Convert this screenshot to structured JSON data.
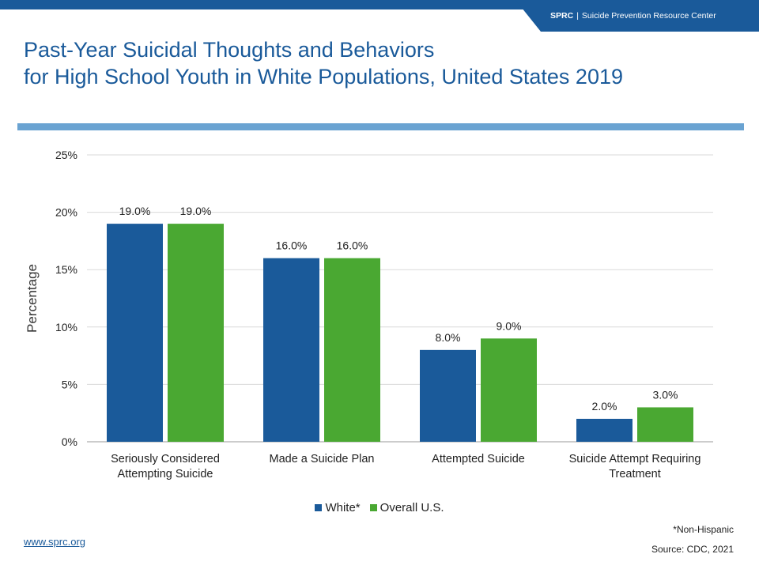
{
  "header": {
    "brand": "SPRC",
    "separator": "|",
    "org_name": "Suicide Prevention Resource Center"
  },
  "title_line1": "Past-Year Suicidal Thoughts and Behaviors",
  "title_line2": "for High School Youth in White Populations, United States 2019",
  "footnote": "*Non-Hispanic",
  "source": "Source: CDC, 2021",
  "url": "www.sprc.org",
  "colors": {
    "accent": "#1a5a9a",
    "rule": "#6aa3d2"
  },
  "chart_data": {
    "type": "bar",
    "categories": [
      [
        "Seriously Considered",
        "Attempting Suicide"
      ],
      [
        "Made a Suicide Plan"
      ],
      [
        "Attempted Suicide"
      ],
      [
        "Suicide Attempt Requiring",
        "Treatment"
      ]
    ],
    "series": [
      {
        "name": "White*",
        "values": [
          19.0,
          16.0,
          8.0,
          2.0
        ],
        "color": "#1a5a9a",
        "labels": [
          "19.0%",
          "16.0%",
          "8.0%",
          "2.0%"
        ]
      },
      {
        "name": "Overall U.S.",
        "values": [
          19.0,
          16.0,
          9.0,
          3.0
        ],
        "color": "#4aa832",
        "labels": [
          "19.0%",
          "16.0%",
          "9.0%",
          "3.0%"
        ]
      }
    ],
    "ylabel": "Percentage",
    "ylim": [
      0,
      25
    ],
    "yticks": [
      0,
      5,
      10,
      15,
      20,
      25
    ],
    "ytick_labels": [
      "0%",
      "5%",
      "10%",
      "15%",
      "20%",
      "25%"
    ],
    "grid": true,
    "legend": "bottom-center"
  }
}
